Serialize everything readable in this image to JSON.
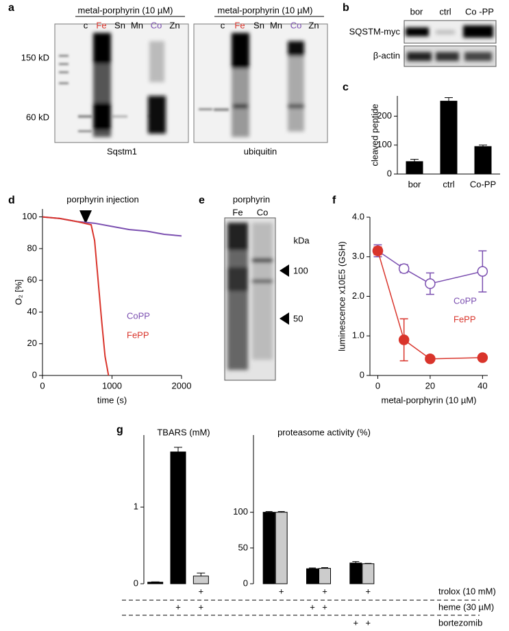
{
  "panel_labels": [
    "a",
    "b",
    "c",
    "d",
    "e",
    "f",
    "g"
  ],
  "blot_a": {
    "headers": [
      "metal-porphyrin (10 µM)",
      "metal-porphyrin (10 µM)"
    ],
    "lanes": [
      "c",
      "Fe",
      "Sn",
      "Mn",
      "Co",
      "Zn"
    ],
    "lane_colors": [
      "#000000",
      "#d9342b",
      "#000000",
      "#000000",
      "#7b4fb0",
      "#000000"
    ],
    "markers": [
      "150 kD",
      "60 kD"
    ],
    "captions": [
      "Sqstm1",
      "ubiquitin"
    ]
  },
  "blot_b": {
    "lanes": [
      "bor",
      "ctrl",
      "Co -PP"
    ],
    "rows": [
      "SQSTM-myc",
      "β-actin"
    ]
  },
  "blot_e": {
    "title": "porphyrin",
    "lanes": [
      "Fe",
      "Co"
    ],
    "unit": "kDa",
    "markers": [
      "100",
      "50"
    ]
  },
  "chart_data": [
    {
      "type": "bar",
      "ylabel": "cleaved peptide",
      "categories": [
        "bor",
        "ctrl",
        "Co-PP"
      ],
      "values": [
        43,
        252,
        95
      ],
      "errors": [
        8,
        12,
        5
      ],
      "color": "#000000",
      "ylim": [
        0,
        270
      ],
      "yticks": [
        0,
        100,
        200
      ]
    },
    {
      "type": "line",
      "xlabel": "time (s)",
      "ylabel": "O₂ [%]",
      "annotation": "porphyrin injection",
      "series": [
        {
          "name": "CoPP",
          "color": "#7b4fb0",
          "x": [
            0,
            250,
            500,
            750,
            1000,
            1250,
            1500,
            1750,
            2000
          ],
          "values": [
            100,
            99,
            97,
            96,
            94,
            92,
            91,
            89,
            88
          ]
        },
        {
          "name": "FePP",
          "color": "#d9342b",
          "x": [
            0,
            250,
            500,
            700,
            750,
            800,
            850,
            900,
            950
          ],
          "values": [
            100,
            99,
            97,
            95,
            85,
            60,
            35,
            12,
            0
          ]
        }
      ],
      "xlim": [
        0,
        2000
      ],
      "xticks": [
        0,
        1000,
        2000
      ],
      "ylim": [
        0,
        105
      ],
      "yticks": [
        0,
        20,
        40,
        60,
        80,
        100
      ]
    },
    {
      "type": "errorline",
      "xlabel": "metal-porphyrin (10 µM)",
      "ylabel": "luminescence x10E5 (GSH)",
      "x": [
        0,
        10,
        20,
        40
      ],
      "series": [
        {
          "name": "CoPP",
          "color": "#7b4fb0",
          "hollow": true,
          "values": [
            3.15,
            2.7,
            2.32,
            2.63
          ],
          "errors": [
            0.15,
            0.1,
            0.27,
            0.52
          ]
        },
        {
          "name": "FePP",
          "color": "#d9342b",
          "hollow": false,
          "values": [
            3.15,
            0.9,
            0.42,
            0.45
          ],
          "errors": [
            0.1,
            0.53,
            0.03,
            0.03
          ]
        }
      ],
      "xlim": [
        -3,
        42
      ],
      "xticks": [
        0,
        20,
        40
      ],
      "ylim": [
        0,
        4
      ],
      "yticks": [
        0,
        {
          "value": 1,
          "label": "1.0"
        },
        {
          "value": 2,
          "label": "2.0"
        },
        {
          "value": 3,
          "label": "3.0"
        },
        {
          "value": 4,
          "label": "4.0"
        }
      ]
    },
    {
      "type": "bar",
      "title": "TBARS (mM)",
      "values": [
        0.02,
        1.72,
        0.1
      ],
      "errors": [
        0.005,
        0.06,
        0.04
      ],
      "colors": [
        "#000000",
        "#000000",
        "#cccccc"
      ],
      "ylim": [
        0,
        1.94
      ],
      "yticks": [
        0,
        1
      ]
    },
    {
      "type": "groupbar",
      "title": "proteasome activity (%)",
      "series": [
        {
          "color": "#000000",
          "values": [
            100,
            21,
            29
          ],
          "errors": [
            1,
            1,
            2
          ]
        },
        {
          "color": "#cccccc",
          "values": [
            100,
            21.5,
            28
          ],
          "errors": [
            1,
            1,
            0.5
          ]
        }
      ],
      "ylim": [
        0,
        208
      ],
      "yticks": [
        0,
        50,
        100
      ]
    }
  ],
  "treatments": {
    "rows": [
      {
        "label": "trolox (10 mM)",
        "cells": [
          null,
          null,
          "+",
          null,
          "+",
          null,
          "+",
          null,
          "+"
        ]
      },
      {
        "label": "heme (30 µM)",
        "cells": [
          null,
          "+",
          "+",
          null,
          null,
          "+",
          "+",
          null,
          null
        ]
      },
      {
        "label": "bortezomib",
        "cells": [
          null,
          null,
          null,
          null,
          null,
          null,
          null,
          "+",
          "+"
        ]
      }
    ]
  }
}
